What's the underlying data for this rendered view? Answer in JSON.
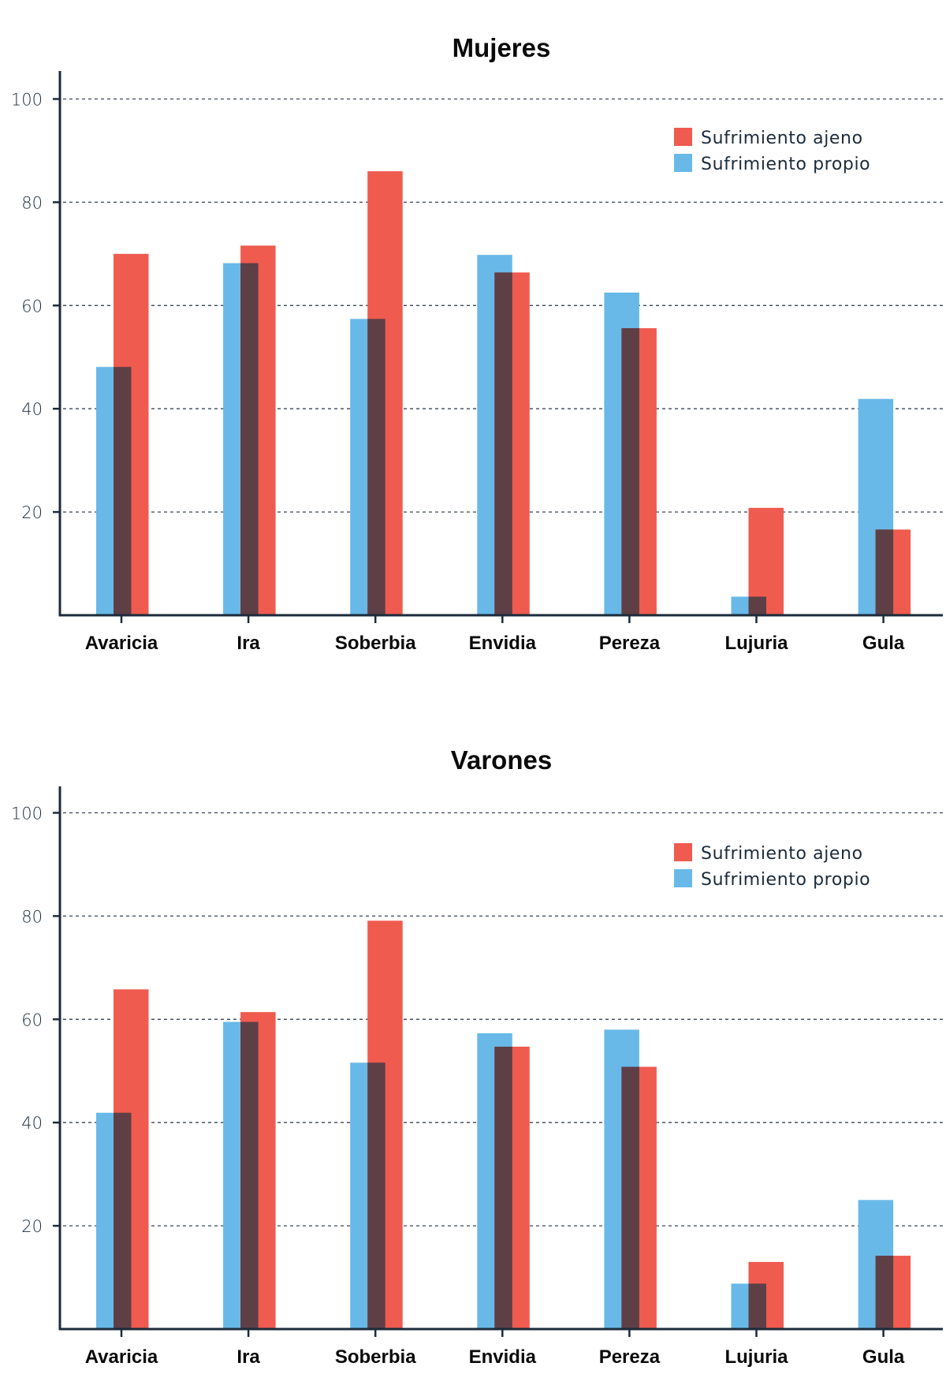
{
  "colors": {
    "ajeno": "#ef5b4f",
    "propio": "#68b9e8",
    "overlap": "#5e3f46",
    "axis": "#1c2b3b",
    "grid": "#3a4656"
  },
  "chart_data": [
    {
      "type": "bar",
      "title": "Mujeres",
      "xlabel": "",
      "ylabel": "",
      "categories": [
        "Avaricia",
        "Ira",
        "Soberbia",
        "Envidia",
        "Pereza",
        "Lujuria",
        "Gula"
      ],
      "yticks": [
        20,
        40,
        60,
        80,
        100
      ],
      "ylim": [
        0,
        105
      ],
      "grid": true,
      "legend_position": "top-right",
      "series": [
        {
          "name": "Sufrimiento ajeno",
          "key": "ajeno",
          "values": [
            70.0,
            71.6,
            86.0,
            66.4,
            55.6,
            20.8,
            16.6
          ]
        },
        {
          "name": "Sufrimiento propio",
          "key": "propio",
          "values": [
            48.1,
            68.2,
            57.4,
            69.8,
            62.5,
            3.6,
            41.9
          ]
        }
      ]
    },
    {
      "type": "bar",
      "title": "Varones",
      "xlabel": "",
      "ylabel": "",
      "categories": [
        "Avaricia",
        "Ira",
        "Soberbia",
        "Envidia",
        "Pereza",
        "Lujuria",
        "Gula"
      ],
      "yticks": [
        20,
        40,
        60,
        80,
        100
      ],
      "ylim": [
        0,
        105
      ],
      "grid": true,
      "legend_position": "top-right",
      "series": [
        {
          "name": "Sufrimiento ajeno",
          "key": "ajeno",
          "values": [
            65.8,
            61.4,
            79.1,
            54.7,
            50.8,
            13.0,
            14.2
          ]
        },
        {
          "name": "Sufrimiento propio",
          "key": "propio",
          "values": [
            41.9,
            59.5,
            51.6,
            57.3,
            58.0,
            8.8,
            25.0
          ]
        }
      ]
    }
  ]
}
